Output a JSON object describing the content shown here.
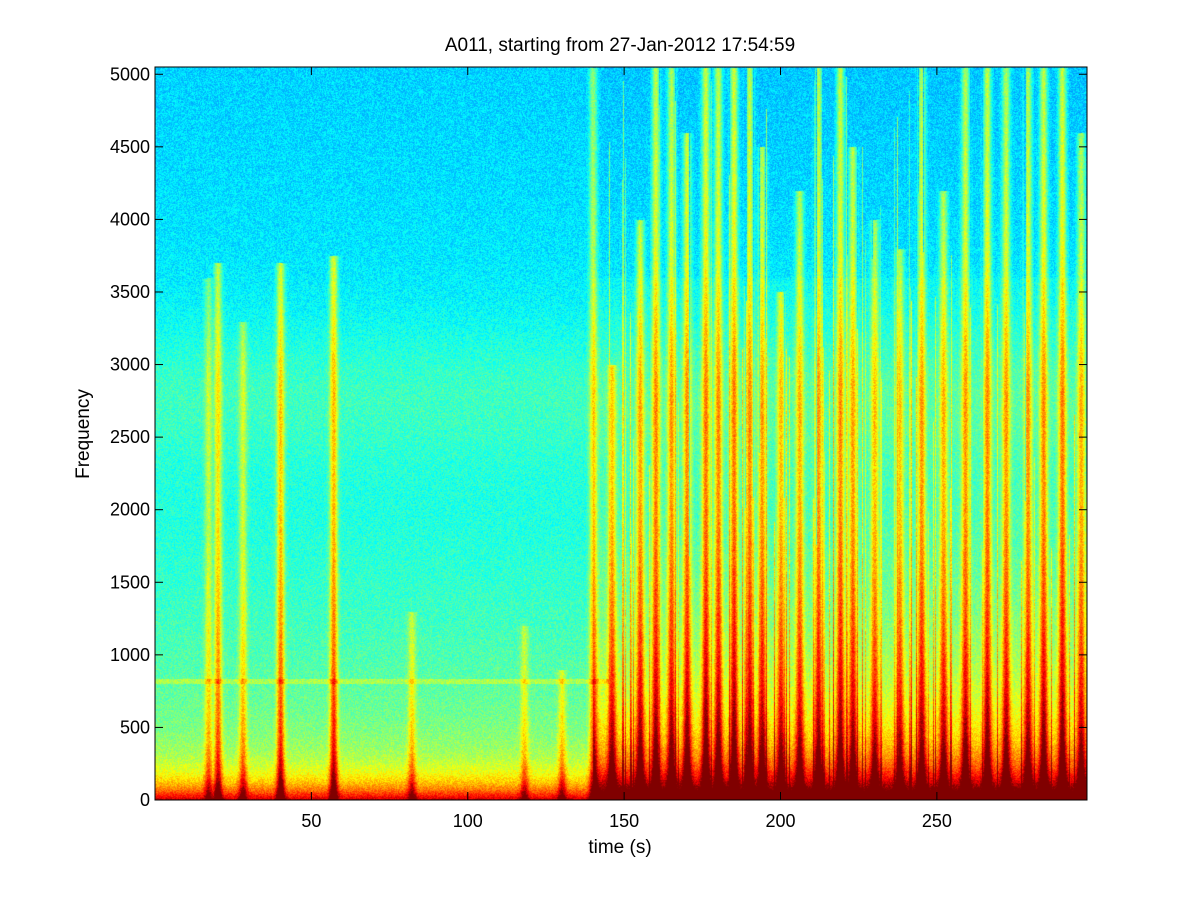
{
  "chart_data": {
    "type": "heatmap",
    "title": "A011, starting from 27-Jan-2012 17:54:59",
    "xlabel": "time (s)",
    "ylabel": "Frequency",
    "xlim": [
      0,
      298
    ],
    "ylim": [
      0,
      5050
    ],
    "xticks": [
      50,
      100,
      150,
      200,
      250
    ],
    "yticks": [
      0,
      500,
      1000,
      1500,
      2000,
      2500,
      3000,
      3500,
      4000,
      4500,
      5000
    ],
    "colormap": "jet",
    "grid": false,
    "events": [
      {
        "t": 17,
        "fmax": 3600,
        "strength": 0.5
      },
      {
        "t": 20,
        "fmax": 3700,
        "strength": 0.75
      },
      {
        "t": 28,
        "fmax": 3300,
        "strength": 0.55
      },
      {
        "t": 40,
        "fmax": 3700,
        "strength": 0.85
      },
      {
        "t": 57,
        "fmax": 3750,
        "strength": 0.9
      },
      {
        "t": 82,
        "fmax": 1300,
        "strength": 0.5
      },
      {
        "t": 118,
        "fmax": 1200,
        "strength": 0.45
      },
      {
        "t": 130,
        "fmax": 900,
        "strength": 0.5
      },
      {
        "t": 140,
        "fmax": 5050,
        "strength": 0.7
      },
      {
        "t": 146,
        "fmax": 3000,
        "strength": 0.8
      },
      {
        "t": 155,
        "fmax": 4000,
        "strength": 0.85
      },
      {
        "t": 160,
        "fmax": 5050,
        "strength": 0.9
      },
      {
        "t": 165,
        "fmax": 5050,
        "strength": 0.85
      },
      {
        "t": 170,
        "fmax": 4600,
        "strength": 0.9
      },
      {
        "t": 176,
        "fmax": 5050,
        "strength": 0.95
      },
      {
        "t": 180,
        "fmax": 5050,
        "strength": 0.9
      },
      {
        "t": 185,
        "fmax": 5050,
        "strength": 0.95
      },
      {
        "t": 190,
        "fmax": 5050,
        "strength": 0.9
      },
      {
        "t": 194,
        "fmax": 4500,
        "strength": 0.85
      },
      {
        "t": 200,
        "fmax": 3500,
        "strength": 0.8
      },
      {
        "t": 206,
        "fmax": 4200,
        "strength": 0.8
      },
      {
        "t": 212,
        "fmax": 5050,
        "strength": 0.85
      },
      {
        "t": 219,
        "fmax": 5050,
        "strength": 0.9
      },
      {
        "t": 223,
        "fmax": 4500,
        "strength": 0.85
      },
      {
        "t": 230,
        "fmax": 4000,
        "strength": 0.75
      },
      {
        "t": 238,
        "fmax": 3800,
        "strength": 0.75
      },
      {
        "t": 245,
        "fmax": 5050,
        "strength": 0.85
      },
      {
        "t": 252,
        "fmax": 4200,
        "strength": 0.8
      },
      {
        "t": 259,
        "fmax": 5050,
        "strength": 0.85
      },
      {
        "t": 266,
        "fmax": 5050,
        "strength": 0.9
      },
      {
        "t": 272,
        "fmax": 5050,
        "strength": 0.85
      },
      {
        "t": 279,
        "fmax": 5050,
        "strength": 0.85
      },
      {
        "t": 284,
        "fmax": 5050,
        "strength": 0.9
      },
      {
        "t": 290,
        "fmax": 5050,
        "strength": 0.95
      },
      {
        "t": 296,
        "fmax": 4600,
        "strength": 0.8
      }
    ]
  }
}
